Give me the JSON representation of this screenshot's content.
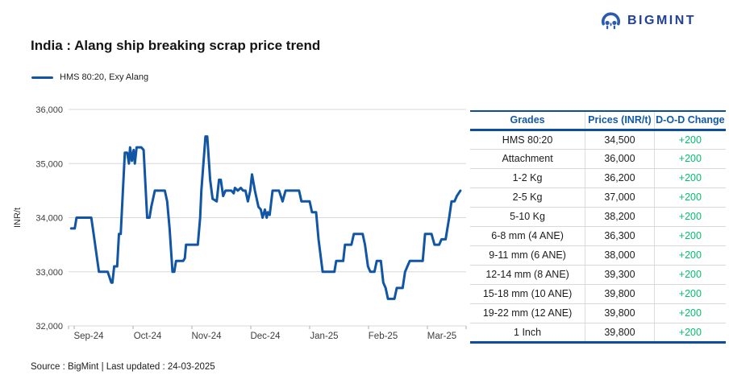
{
  "header": {
    "brand": "BIGMINT",
    "title": "India : Alang ship breaking scrap price trend"
  },
  "chart": {
    "legend_label": "HMS 80:20, Exy Alang"
  },
  "chart_data": {
    "type": "line",
    "title": "India : Alang ship breaking scrap price trend",
    "ylabel": "INR/t",
    "ylim": [
      32000,
      36000
    ],
    "y_tick_step": 1000,
    "y_tick_labels": [
      "36,000",
      "35,000",
      "34,000",
      "33,000",
      "32,000"
    ],
    "x_tick_labels": [
      "Sep-24",
      "Oct-24",
      "Nov-24",
      "Dec-24",
      "Jan-25",
      "Feb-25",
      "Mar-25"
    ],
    "x_unit": "fractional months after Sep-24 tick",
    "grid": true,
    "legend_position": "top-left",
    "series": [
      {
        "name": "HMS 80:20, Exy Alang",
        "color": "#1155A5",
        "points": [
          [
            -0.05,
            33800
          ],
          [
            0.01,
            33800
          ],
          [
            0.04,
            34000
          ],
          [
            0.29,
            34000
          ],
          [
            0.33,
            33700
          ],
          [
            0.42,
            33000
          ],
          [
            0.57,
            33000
          ],
          [
            0.63,
            32800
          ],
          [
            0.65,
            32800
          ],
          [
            0.68,
            33100
          ],
          [
            0.73,
            33100
          ],
          [
            0.76,
            33700
          ],
          [
            0.79,
            33700
          ],
          [
            0.86,
            35200
          ],
          [
            0.9,
            35200
          ],
          [
            0.93,
            35000
          ],
          [
            0.95,
            35300
          ],
          [
            0.98,
            35050
          ],
          [
            1.01,
            35250
          ],
          [
            1.03,
            35000
          ],
          [
            1.06,
            35300
          ],
          [
            1.14,
            35300
          ],
          [
            1.18,
            35250
          ],
          [
            1.24,
            34000
          ],
          [
            1.28,
            34000
          ],
          [
            1.31,
            34200
          ],
          [
            1.37,
            34500
          ],
          [
            1.54,
            34500
          ],
          [
            1.58,
            34300
          ],
          [
            1.62,
            33800
          ],
          [
            1.67,
            33000
          ],
          [
            1.7,
            33000
          ],
          [
            1.73,
            33200
          ],
          [
            1.85,
            33200
          ],
          [
            1.88,
            33250
          ],
          [
            1.9,
            33500
          ],
          [
            2.1,
            33500
          ],
          [
            2.14,
            34000
          ],
          [
            2.16,
            34500
          ],
          [
            2.23,
            35500
          ],
          [
            2.26,
            35500
          ],
          [
            2.31,
            34700
          ],
          [
            2.35,
            34350
          ],
          [
            2.42,
            34300
          ],
          [
            2.46,
            34700
          ],
          [
            2.49,
            34700
          ],
          [
            2.53,
            34400
          ],
          [
            2.57,
            34500
          ],
          [
            2.67,
            34500
          ],
          [
            2.71,
            34450
          ],
          [
            2.73,
            34550
          ],
          [
            2.78,
            34500
          ],
          [
            2.83,
            34550
          ],
          [
            2.87,
            34500
          ],
          [
            2.91,
            34500
          ],
          [
            2.95,
            34300
          ],
          [
            2.99,
            34500
          ],
          [
            3.02,
            34800
          ],
          [
            3.07,
            34500
          ],
          [
            3.13,
            34200
          ],
          [
            3.17,
            34150
          ],
          [
            3.2,
            34000
          ],
          [
            3.24,
            34150
          ],
          [
            3.27,
            34000
          ],
          [
            3.29,
            34100
          ],
          [
            3.32,
            34050
          ],
          [
            3.37,
            34500
          ],
          [
            3.48,
            34500
          ],
          [
            3.54,
            34300
          ],
          [
            3.59,
            34500
          ],
          [
            3.82,
            34500
          ],
          [
            3.86,
            34300
          ],
          [
            4.0,
            34300
          ],
          [
            4.04,
            34100
          ],
          [
            4.11,
            34100
          ],
          [
            4.15,
            33600
          ],
          [
            4.22,
            33000
          ],
          [
            4.42,
            33000
          ],
          [
            4.45,
            33200
          ],
          [
            4.57,
            33200
          ],
          [
            4.6,
            33500
          ],
          [
            4.71,
            33500
          ],
          [
            4.75,
            33700
          ],
          [
            4.9,
            33700
          ],
          [
            4.94,
            33500
          ],
          [
            4.99,
            33100
          ],
          [
            5.03,
            33000
          ],
          [
            5.1,
            33000
          ],
          [
            5.14,
            33200
          ],
          [
            5.21,
            33200
          ],
          [
            5.25,
            32800
          ],
          [
            5.29,
            32700
          ],
          [
            5.33,
            32500
          ],
          [
            5.44,
            32500
          ],
          [
            5.48,
            32700
          ],
          [
            5.58,
            32700
          ],
          [
            5.62,
            33000
          ],
          [
            5.66,
            33100
          ],
          [
            5.7,
            33200
          ],
          [
            5.92,
            33200
          ],
          [
            5.96,
            33700
          ],
          [
            6.07,
            33700
          ],
          [
            6.12,
            33500
          ],
          [
            6.2,
            33500
          ],
          [
            6.24,
            33600
          ],
          [
            6.31,
            33600
          ],
          [
            6.37,
            34000
          ],
          [
            6.41,
            34300
          ],
          [
            6.46,
            34300
          ],
          [
            6.5,
            34400
          ],
          [
            6.56,
            34500
          ]
        ]
      }
    ]
  },
  "table": {
    "columns": [
      "Grades",
      "Prices (INR/t)",
      "D-O-D Change"
    ],
    "rows": [
      {
        "grade": "HMS 80:20",
        "price": "34,500",
        "change": "+200"
      },
      {
        "grade": "Attachment",
        "price": "36,000",
        "change": "+200"
      },
      {
        "grade": "1-2 Kg",
        "price": "36,200",
        "change": "+200"
      },
      {
        "grade": "2-5 Kg",
        "price": "37,000",
        "change": "+200"
      },
      {
        "grade": "5-10 Kg",
        "price": "38,200",
        "change": "+200"
      },
      {
        "grade": "6-8 mm (4 ANE)",
        "price": "36,300",
        "change": "+200"
      },
      {
        "grade": "9-11 mm (6 ANE)",
        "price": "38,000",
        "change": "+200"
      },
      {
        "grade": "12-14 mm (8 ANE)",
        "price": "39,300",
        "change": "+200"
      },
      {
        "grade": "15-18 mm (10 ANE)",
        "price": "39,800",
        "change": "+200"
      },
      {
        "grade": "19-22 mm (12 ANE)",
        "price": "39,800",
        "change": "+200"
      },
      {
        "grade": "1 Inch",
        "price": "39,800",
        "change": "+200"
      }
    ]
  },
  "footer": {
    "source": "Source : BigMint | Last updated : 24-03-2025"
  },
  "colors": {
    "line_blue": "#1155A5",
    "header_blue": "#1259A8",
    "border_blue": "#0C4DA2",
    "change_green": "#00BE6E",
    "grid_gray": "#D9D9D9",
    "logo_navy": "#20409A",
    "axis_text": "#3D3D3D"
  }
}
